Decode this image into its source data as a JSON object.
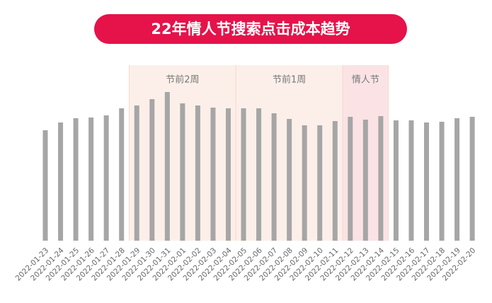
{
  "chart_data": {
    "type": "bar",
    "title": "22年情人节搜索点击成本趋势",
    "categories": [
      "2022-01-23",
      "2022-01-24",
      "2022-01-25",
      "2022-01-26",
      "2022-01-27",
      "2022-01-28",
      "2022-01-29",
      "2022-01-30",
      "2022-01-31",
      "2022-02-01",
      "2022-02-02",
      "2022-02-03",
      "2022-02-04",
      "2022-02-05",
      "2022-02-06",
      "2022-02-07",
      "2022-02-08",
      "2022-02-09",
      "2022-02-10",
      "2022-02-11",
      "2022-02-12",
      "2022-02-13",
      "2022-02-14",
      "2022-02-15",
      "2022-02-16",
      "2022-02-17",
      "2022-02-18",
      "2022-02-19",
      "2022-02-20"
    ],
    "values": [
      156,
      167,
      173,
      174,
      177,
      187,
      191,
      200,
      210,
      194,
      191,
      188,
      187,
      187,
      187,
      180,
      172,
      163,
      163,
      169,
      175,
      171,
      176,
      170,
      170,
      167,
      168,
      173,
      175
    ],
    "color": "#a6a6a6",
    "ylim": [
      0,
      240
    ],
    "regions": [
      {
        "label": "节前2周",
        "from": "2022-01-29",
        "to": "2022-02-04",
        "color": "#fcefe9"
      },
      {
        "label": "节前1周",
        "from": "2022-02-05",
        "to": "2022-02-11",
        "color": "#fcefe9"
      },
      {
        "label": "情人节",
        "from": "2022-02-12",
        "to": "2022-02-14",
        "color": "#fbe3e5"
      }
    ]
  }
}
